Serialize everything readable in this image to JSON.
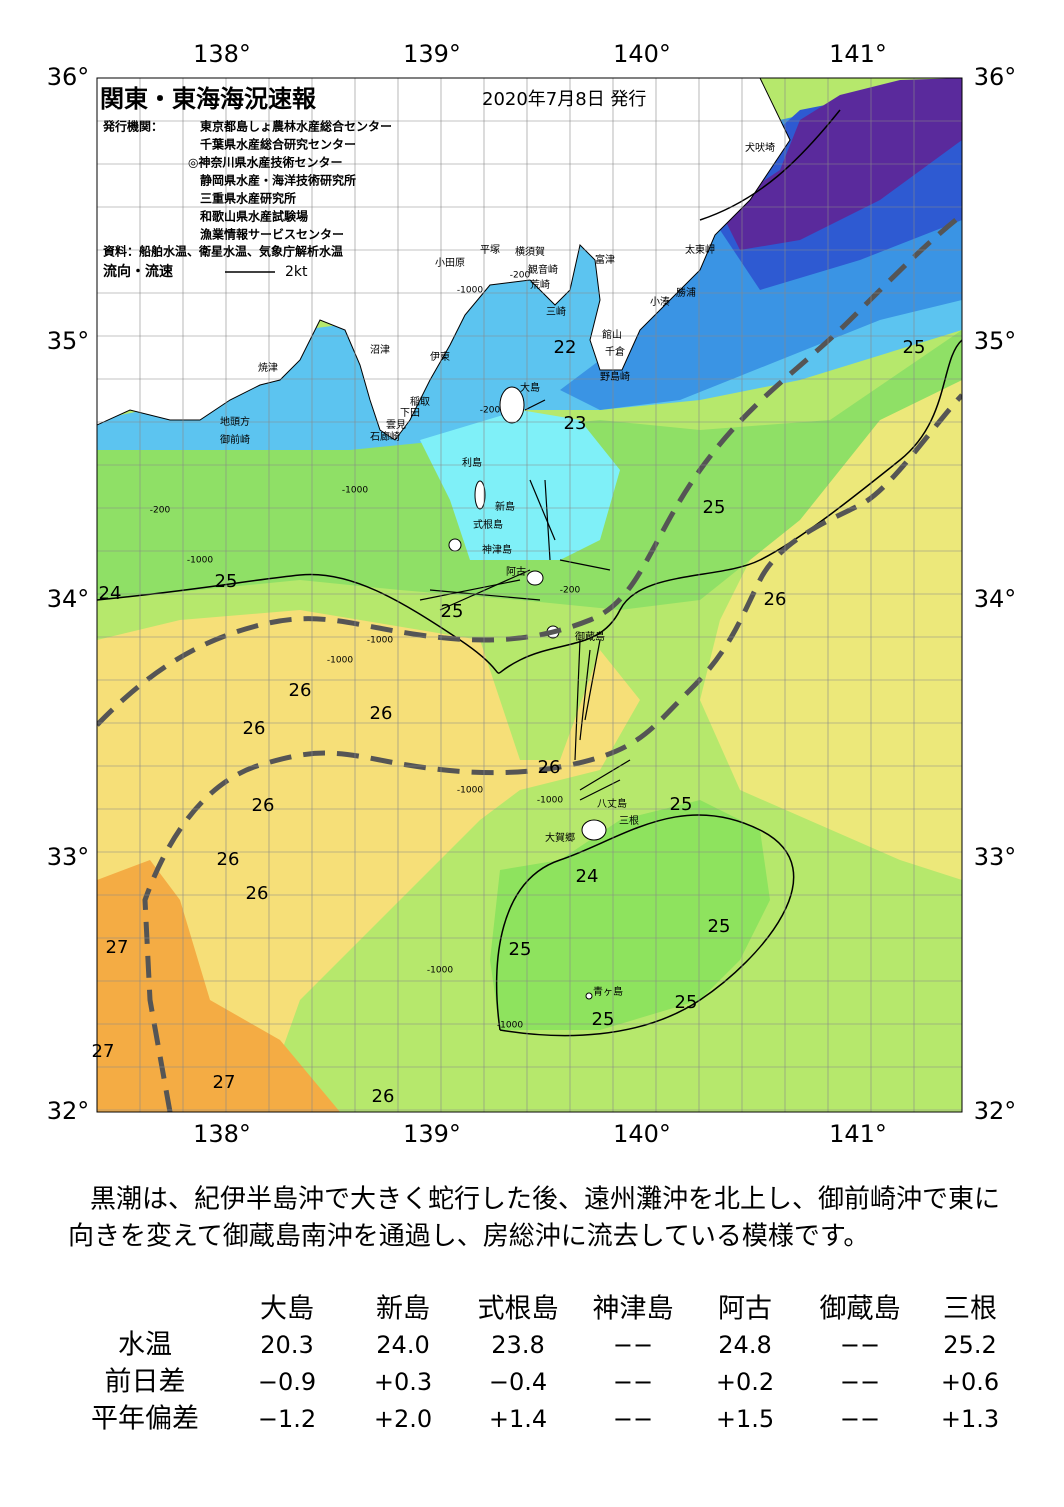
{
  "header": {
    "title": "関東・東海海況速報",
    "date": "2020年7月8日 発行",
    "publisher_label": "発行機関：",
    "publishers": [
      "東京都島しょ農林水産総合センター",
      "千葉県水産総合研究センター",
      "◎神奈川県水産技術センター",
      "静岡県水産・海洋技術研究所",
      "三重県水産研究所",
      "和歌山県水産試験場",
      "漁業情報サービスセンター"
    ],
    "source": "資料：船舶水温、衛星水温、気象庁解析水温",
    "flow_label": "流向・流速",
    "flow_scale": "2kt"
  },
  "map": {
    "lon_labels": [
      "138°",
      "139°",
      "140°",
      "141°"
    ],
    "lat_labels": [
      "36°",
      "35°",
      "34°",
      "33°",
      "32°"
    ],
    "places": [
      "犬吠埼",
      "太東岬",
      "勝浦",
      "小湊",
      "富津",
      "横須賀",
      "観音崎",
      "荒崎",
      "三崎",
      "平塚",
      "小田原",
      "館山",
      "千倉",
      "野島崎",
      "大島",
      "沼津",
      "伊東",
      "焼津",
      "稲取",
      "下田",
      "雲見",
      "石廊崎",
      "地頭方",
      "御前崎",
      "利島",
      "新島",
      "式根島",
      "神津島",
      "阿古",
      "御蔵島",
      "八丈島",
      "三根",
      "大賀郷",
      "青ヶ島"
    ],
    "temperature_labels": [
      "22",
      "23",
      "25",
      "25",
      "24",
      "25",
      "25",
      "26",
      "26",
      "26",
      "26",
      "26",
      "26",
      "25",
      "26",
      "24",
      "26",
      "25",
      "27",
      "25",
      "25",
      "25",
      "27",
      "27",
      "26"
    ],
    "depth_labels": [
      "-1000",
      "-200",
      "-200",
      "-1000",
      "-200",
      "-1000",
      "-1000",
      "-200",
      "-1000",
      "-1000",
      "-1000",
      "-1000",
      "-1000"
    ]
  },
  "text": {
    "lines": [
      "黒潮は、紀伊半島沖で大きく蛇行した後、遠州灘沖を北上し、御前崎沖で東に",
      "向きを変えて御蔵島南沖を通過し、房総沖に流去している模様です。"
    ]
  },
  "table": {
    "columns": [
      "大島",
      "新島",
      "式根島",
      "神津島",
      "阿古",
      "御蔵島",
      "三根"
    ],
    "rows": [
      {
        "label": "水温",
        "values": [
          "20.3",
          "24.0",
          "23.8",
          "−−",
          "24.8",
          "−−",
          "25.2"
        ]
      },
      {
        "label": "前日差",
        "values": [
          "−0.9",
          "+0.3",
          "−0.4",
          "−−",
          "+0.2",
          "−−",
          "+0.6"
        ]
      },
      {
        "label": "平年偏差",
        "values": [
          "−1.2",
          "+2.0",
          "+1.4",
          "−−",
          "+1.5",
          "−−",
          "+1.3"
        ]
      }
    ]
  }
}
